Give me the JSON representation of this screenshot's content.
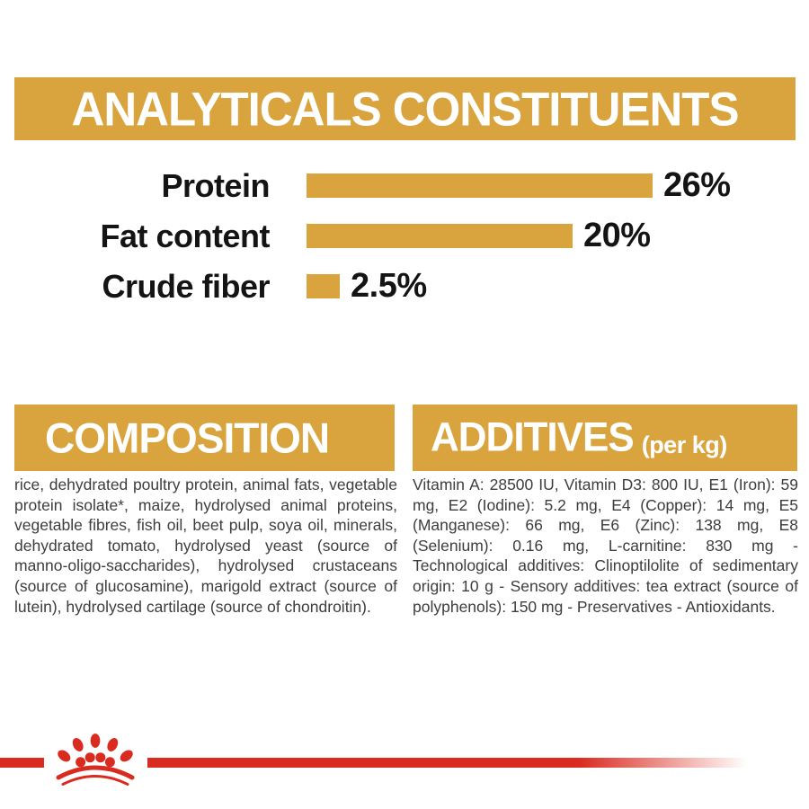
{
  "colors": {
    "gold": "#D9A43E",
    "brand_red": "#DA2B20",
    "heading_text": "#ffffff",
    "label_text": "#141414",
    "body_text": "#3d3d3d",
    "background": "#ffffff"
  },
  "header": {
    "title": "ANALYTICALS CONSTITUENTS"
  },
  "chart_data": {
    "type": "bar",
    "orientation": "horizontal",
    "title": "ANALYTICALS CONSTITUENTS",
    "categories": [
      "Protein",
      "Fat content",
      "Crude fiber"
    ],
    "values": [
      26,
      20,
      2.5
    ],
    "value_labels": [
      "26%",
      "20%",
      "2.5%"
    ],
    "unit": "%",
    "xlabel": "",
    "ylabel": "",
    "xlim": [
      0,
      26
    ],
    "bar_color": "#D9A43E",
    "grid": false,
    "legend": false
  },
  "composition": {
    "title": "COMPOSITION",
    "body": "rice, dehydrated poultry protein, animal fats, vegetable protein isolate*, maize, hydrolysed animal proteins, vegetable fibres, fish oil, beet pulp, soya oil, minerals, dehydrated tomato, hydrolysed yeast (source of manno-oligo-saccharides), hydrolysed crustaceans (source of glucosamine), marigold extract (source of lutein), hydrolysed cartilage (source of chondroitin)."
  },
  "additives": {
    "title": "ADDITIVES",
    "title_suffix": "(per kg)",
    "body": "Vitamin A: 28500 IU, Vitamin D3: 800 IU, E1 (Iron): 59 mg, E2 (Iodine): 5.2 mg, E4 (Copper): 14 mg, E5 (Manganese): 66 mg, E6 (Zinc): 138 mg, E8 (Selenium): 0.16 mg, L-carnitine: 830 mg - Technological additives: Clinoptilolite of sedimentary origin: 10 g - Sensory additives: tea extract (source of polyphenols): 150 mg - Preservatives - Antioxidants."
  },
  "footer": {
    "brand_icon": "royal-canin-crown-icon"
  }
}
